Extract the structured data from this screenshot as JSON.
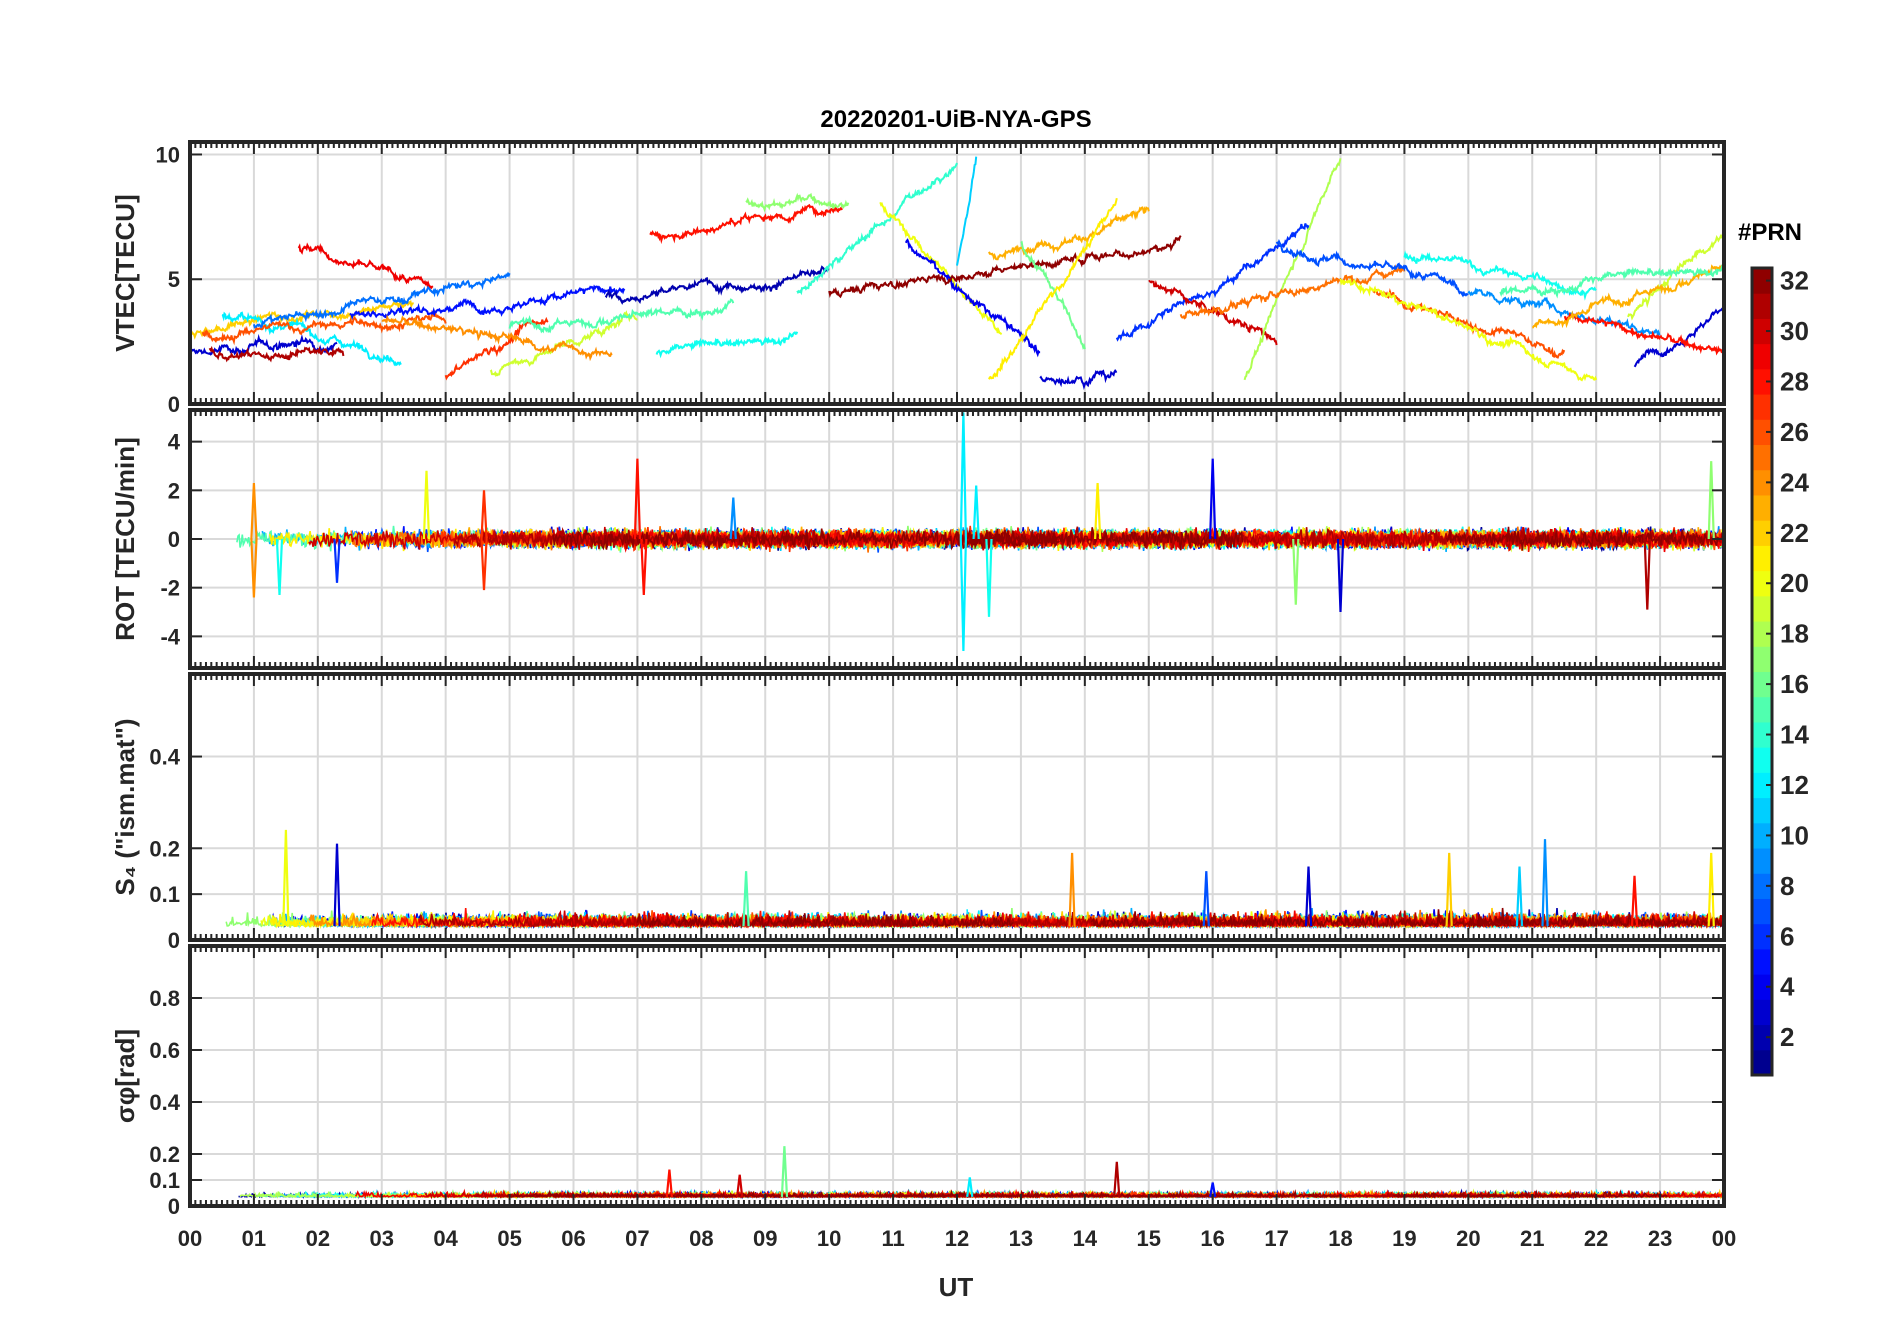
{
  "chart_data": {
    "title": "20220201-UiB-NYA-GPS",
    "xlabel": "UT",
    "x_tick_labels": [
      "00",
      "01",
      "02",
      "03",
      "04",
      "05",
      "06",
      "07",
      "08",
      "09",
      "10",
      "11",
      "12",
      "13",
      "14",
      "15",
      "16",
      "17",
      "18",
      "19",
      "20",
      "21",
      "22",
      "23",
      "00"
    ],
    "xlim": [
      0,
      24
    ],
    "colorbar": {
      "title": "#PRN",
      "range": [
        1,
        32
      ],
      "ticks": [
        2,
        4,
        6,
        8,
        10,
        12,
        14,
        16,
        18,
        20,
        22,
        24,
        26,
        28,
        30,
        32
      ],
      "tick_labels": [
        "2",
        "4",
        "6",
        "8",
        "10",
        "12",
        "14",
        "16",
        "18",
        "20",
        "22",
        "24",
        "26",
        "28",
        "30",
        "32"
      ],
      "colormap": "jet",
      "levels": 32
    },
    "grid": true,
    "panels": [
      {
        "type": "line",
        "ylabel": "VTEC[TECU]",
        "ylim": [
          0,
          10.5
        ],
        "y_ticks": [
          0,
          5,
          10
        ],
        "y_tick_labels": [
          "0",
          "5",
          "10"
        ],
        "baseline": 3.8,
        "noise": 0.25,
        "arcs": [
          {
            "prn": 3,
            "t0": 0.0,
            "t1": 2.3,
            "v0": 2.0,
            "v1": 2.6
          },
          {
            "prn": 31,
            "t0": 0.3,
            "t1": 2.4,
            "v0": 2.2,
            "v1": 1.7
          },
          {
            "prn": 22,
            "t0": 0.0,
            "t1": 3.5,
            "v0": 3.0,
            "v1": 4.2
          },
          {
            "prn": 12,
            "t0": 0.5,
            "t1": 3.3,
            "v0": 3.6,
            "v1": 2.0
          },
          {
            "prn": 29,
            "t0": 1.7,
            "t1": 3.8,
            "v0": 6.3,
            "v1": 4.5
          },
          {
            "prn": 26,
            "t0": 0.2,
            "t1": 4.0,
            "v0": 2.8,
            "v1": 3.4
          },
          {
            "prn": 8,
            "t0": 1.0,
            "t1": 5.0,
            "v0": 3.2,
            "v1": 5.0
          },
          {
            "prn": 27,
            "t0": 4.0,
            "t1": 5.6,
            "v0": 1.2,
            "v1": 3.5
          },
          {
            "prn": 19,
            "t0": 4.7,
            "t1": 7.0,
            "v0": 1.2,
            "v1": 3.5
          },
          {
            "prn": 5,
            "t0": 2.5,
            "t1": 6.8,
            "v0": 3.6,
            "v1": 4.6
          },
          {
            "prn": 24,
            "t0": 3.0,
            "t1": 6.6,
            "v0": 3.3,
            "v1": 2.0
          },
          {
            "prn": 15,
            "t0": 5.0,
            "t1": 8.5,
            "v0": 3.0,
            "v1": 4.0
          },
          {
            "prn": 13,
            "t0": 7.3,
            "t1": 9.5,
            "v0": 2.0,
            "v1": 2.8
          },
          {
            "prn": 28,
            "t0": 7.2,
            "t1": 10.2,
            "v0": 6.8,
            "v1": 8.0
          },
          {
            "prn": 2,
            "t0": 6.5,
            "t1": 10.0,
            "v0": 4.4,
            "v1": 5.2
          },
          {
            "prn": 17,
            "t0": 8.7,
            "t1": 10.3,
            "v0": 8.1,
            "v1": 8.2
          },
          {
            "prn": 14,
            "t0": 9.5,
            "t1": 12.0,
            "v0": 4.5,
            "v1": 9.8
          },
          {
            "prn": 20,
            "t0": 10.8,
            "t1": 12.7,
            "v0": 8.0,
            "v1": 3.0
          },
          {
            "prn": 11,
            "t0": 12.0,
            "t1": 12.3,
            "v0": 5.5,
            "v1": 10.0
          },
          {
            "prn": 4,
            "t0": 11.2,
            "t1": 13.3,
            "v0": 6.5,
            "v1": 2.0
          },
          {
            "prn": 32,
            "t0": 10.0,
            "t1": 15.5,
            "v0": 4.5,
            "v1": 6.5
          },
          {
            "prn": 23,
            "t0": 12.5,
            "t1": 15.0,
            "v0": 6.0,
            "v1": 7.5
          },
          {
            "prn": 16,
            "t0": 13.0,
            "t1": 14.0,
            "v0": 6.5,
            "v1": 2.5
          },
          {
            "prn": 21,
            "t0": 12.5,
            "t1": 14.5,
            "v0": 1.0,
            "v1": 8.0
          },
          {
            "prn": 3,
            "t0": 13.3,
            "t1": 14.5,
            "v0": 1.0,
            "v1": 1.5
          },
          {
            "prn": 6,
            "t0": 14.5,
            "t1": 17.5,
            "v0": 2.5,
            "v1": 7.0
          },
          {
            "prn": 30,
            "t0": 15.0,
            "t1": 17.0,
            "v0": 5.0,
            "v1": 2.5
          },
          {
            "prn": 18,
            "t0": 16.5,
            "t1": 18.0,
            "v0": 1.0,
            "v1": 10.0
          },
          {
            "prn": 25,
            "t0": 15.5,
            "t1": 19.0,
            "v0": 3.5,
            "v1": 5.5
          },
          {
            "prn": 7,
            "t0": 17.0,
            "t1": 20.0,
            "v0": 6.5,
            "v1": 4.5
          },
          {
            "prn": 13,
            "t0": 19.0,
            "t1": 22.0,
            "v0": 6.0,
            "v1": 4.5
          },
          {
            "prn": 26,
            "t0": 18.5,
            "t1": 21.5,
            "v0": 4.5,
            "v1": 2.0
          },
          {
            "prn": 20,
            "t0": 18.0,
            "t1": 22.0,
            "v0": 5.0,
            "v1": 1.0
          },
          {
            "prn": 9,
            "t0": 20.0,
            "t1": 23.0,
            "v0": 4.5,
            "v1": 3.0
          },
          {
            "prn": 3,
            "t0": 22.6,
            "t1": 24.0,
            "v0": 1.5,
            "v1": 4.0
          },
          {
            "prn": 28,
            "t0": 21.5,
            "t1": 24.0,
            "v0": 3.5,
            "v1": 2.0
          },
          {
            "prn": 19,
            "t0": 22.5,
            "t1": 24.0,
            "v0": 3.5,
            "v1": 7.0
          },
          {
            "prn": 23,
            "t0": 21.0,
            "t1": 24.0,
            "v0": 3.0,
            "v1": 5.5
          },
          {
            "prn": 15,
            "t0": 20.5,
            "t1": 24.0,
            "v0": 4.5,
            "v1": 5.5
          }
        ]
      },
      {
        "type": "line",
        "ylabel": "ROT [TECU/min]",
        "ylim": [
          -5.3,
          5.3
        ],
        "y_ticks": [
          -4,
          -2,
          0,
          2,
          4
        ],
        "y_tick_labels": [
          "-4",
          "-2",
          "0",
          "2",
          "4"
        ],
        "baseline": 0,
        "noise": 0.35,
        "spikes": [
          {
            "t": 1.0,
            "v": 2.3,
            "prn": 24
          },
          {
            "t": 1.0,
            "v": -2.4,
            "prn": 24
          },
          {
            "t": 1.4,
            "v": -2.3,
            "prn": 13
          },
          {
            "t": 2.3,
            "v": -1.8,
            "prn": 6
          },
          {
            "t": 3.7,
            "v": 2.8,
            "prn": 20
          },
          {
            "t": 4.6,
            "v": 2.0,
            "prn": 27
          },
          {
            "t": 4.6,
            "v": -2.1,
            "prn": 27
          },
          {
            "t": 7.0,
            "v": 3.3,
            "prn": 28
          },
          {
            "t": 7.1,
            "v": -2.3,
            "prn": 28
          },
          {
            "t": 8.5,
            "v": 1.7,
            "prn": 9
          },
          {
            "t": 12.1,
            "v": 5.2,
            "prn": 12
          },
          {
            "t": 12.1,
            "v": -4.6,
            "prn": 12
          },
          {
            "t": 12.3,
            "v": 2.2,
            "prn": 12
          },
          {
            "t": 12.5,
            "v": -3.2,
            "prn": 13
          },
          {
            "t": 14.2,
            "v": 2.3,
            "prn": 21
          },
          {
            "t": 16.0,
            "v": 3.3,
            "prn": 4
          },
          {
            "t": 17.3,
            "v": -2.7,
            "prn": 17
          },
          {
            "t": 18.0,
            "v": -3.0,
            "prn": 3
          },
          {
            "t": 22.8,
            "v": -2.9,
            "prn": 31
          },
          {
            "t": 23.8,
            "v": 3.2,
            "prn": 17
          }
        ]
      },
      {
        "type": "line",
        "ylabel": "S₄ (\"ism.mat\")",
        "ylim": [
          0,
          0.58
        ],
        "y_ticks": [
          0,
          0.1,
          0.2,
          0.4
        ],
        "y_tick_labels": [
          "0",
          "0.1",
          "0.2",
          "0.4"
        ],
        "baseline": 0.03,
        "noise": 0.02,
        "spikes": [
          {
            "t": 1.5,
            "v": 0.24,
            "prn": 20
          },
          {
            "t": 2.3,
            "v": 0.21,
            "prn": 3
          },
          {
            "t": 8.7,
            "v": 0.15,
            "prn": 15
          },
          {
            "t": 13.8,
            "v": 0.19,
            "prn": 24
          },
          {
            "t": 15.9,
            "v": 0.15,
            "prn": 7
          },
          {
            "t": 17.5,
            "v": 0.16,
            "prn": 3
          },
          {
            "t": 19.7,
            "v": 0.19,
            "prn": 22
          },
          {
            "t": 20.8,
            "v": 0.16,
            "prn": 11
          },
          {
            "t": 21.2,
            "v": 0.22,
            "prn": 9
          },
          {
            "t": 22.6,
            "v": 0.14,
            "prn": 28
          },
          {
            "t": 23.8,
            "v": 0.19,
            "prn": 21
          }
        ]
      },
      {
        "type": "line",
        "ylabel": "σφ[rad]",
        "ylim": [
          0,
          1.0
        ],
        "y_ticks": [
          0,
          0.1,
          0.2,
          0.4,
          0.6,
          0.8
        ],
        "y_tick_labels": [
          "0",
          "0.1",
          "0.2",
          "0.4",
          "0.6",
          "0.8"
        ],
        "baseline": 0.035,
        "noise": 0.012,
        "spikes": [
          {
            "t": 7.5,
            "v": 0.14,
            "prn": 28
          },
          {
            "t": 8.6,
            "v": 0.12,
            "prn": 30
          },
          {
            "t": 9.3,
            "v": 0.23,
            "prn": 16
          },
          {
            "t": 12.2,
            "v": 0.11,
            "prn": 12
          },
          {
            "t": 14.5,
            "v": 0.17,
            "prn": 31
          },
          {
            "t": 16.0,
            "v": 0.09,
            "prn": 5
          }
        ]
      }
    ]
  }
}
